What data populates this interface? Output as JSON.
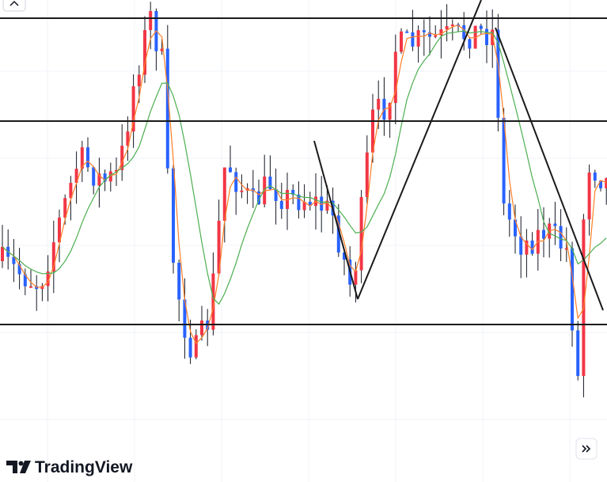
{
  "logo": {
    "text": "TradingView"
  }
}
